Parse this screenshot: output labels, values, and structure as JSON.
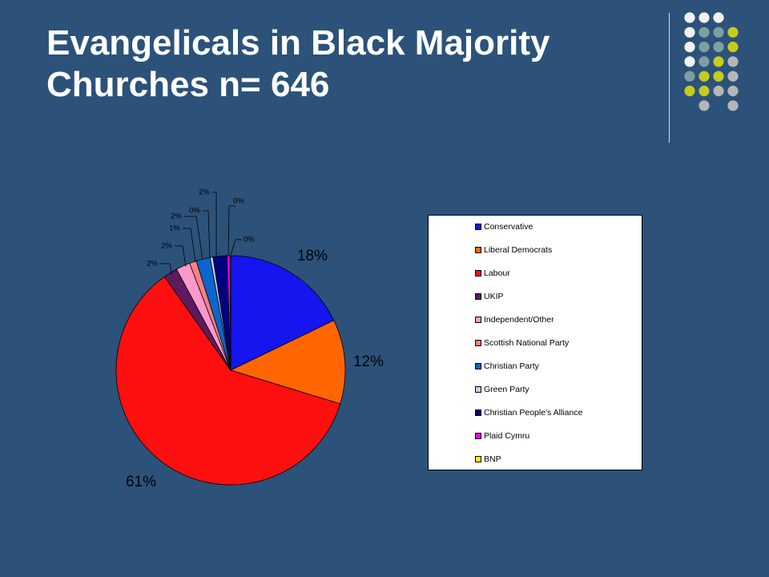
{
  "slide": {
    "title_line1": "Evangelicals in Black Majority",
    "title_line2": "Churches n= 646"
  },
  "decor": {
    "dot_colors": {
      "white": "#f2f2f2",
      "teal": "#7e9fa1",
      "lime": "#c6cc1e",
      "grey": "#b4b6b9"
    },
    "dot_grid": [
      [
        "white",
        "white",
        "white",
        null
      ],
      [
        "white",
        "teal",
        "teal",
        "lime"
      ],
      [
        "white",
        "teal",
        "teal",
        "lime"
      ],
      [
        "white",
        "teal",
        "lime",
        "grey"
      ],
      [
        "teal",
        "lime",
        "lime",
        "grey"
      ],
      [
        "lime",
        "lime",
        "grey",
        "grey"
      ],
      [
        null,
        "grey",
        null,
        "grey"
      ]
    ]
  },
  "chart_data": {
    "type": "pie",
    "title": "",
    "series": [
      {
        "name": "Conservative",
        "value": 18,
        "label": "18%",
        "color": "#1515f0"
      },
      {
        "name": "Liberal Democrats",
        "value": 12,
        "label": "12%",
        "color": "#ff6600"
      },
      {
        "name": "Labour",
        "value": 61,
        "label": "61%",
        "color": "#ff0f0f"
      },
      {
        "name": "UKIP",
        "value": 2,
        "label": "2%",
        "color": "#5e1a5e"
      },
      {
        "name": "Independent/Other",
        "value": 2,
        "label": "2%",
        "color": "#ff99cc"
      },
      {
        "name": "Scottish National Party",
        "value": 1,
        "label": "1%",
        "color": "#ff8080"
      },
      {
        "name": "Christian Party",
        "value": 2,
        "label": "2%",
        "color": "#0a66cc"
      },
      {
        "name": "Green Party",
        "value": 0.4,
        "label": "0%",
        "color": "#ccccff"
      },
      {
        "name": "Christian People's Alliance",
        "value": 2,
        "label": "2%",
        "color": "#000080"
      },
      {
        "name": "Plaid Cymru",
        "value": 0.4,
        "label": "0%",
        "color": "#ff00ff"
      },
      {
        "name": "BNP",
        "value": 0.1,
        "label": "0%",
        "color": "#ffff00"
      }
    ],
    "legend_position": "right"
  }
}
